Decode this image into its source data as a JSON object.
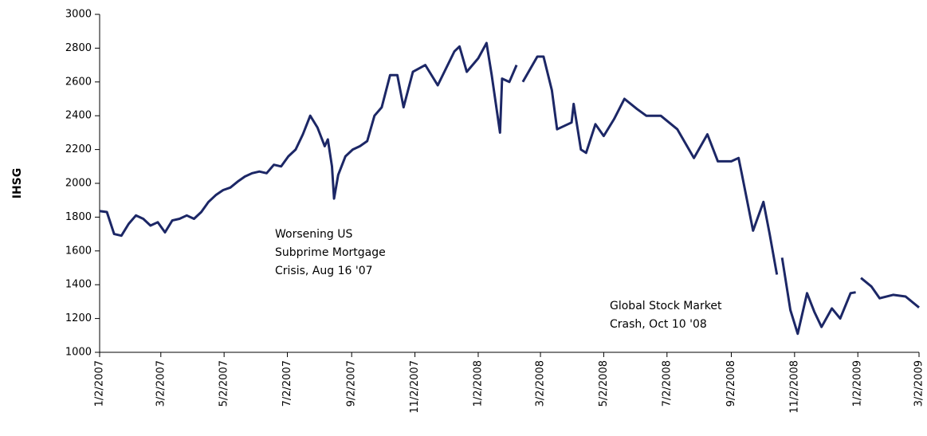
{
  "chart_data": {
    "type": "line",
    "y_label": "IHSG",
    "x": [
      "1/2/2007",
      "1/9/2007",
      "1/16/2007",
      "1/23/2007",
      "1/30/2007",
      "2/6/2007",
      "2/13/2007",
      "2/20/2007",
      "2/27/2007",
      "3/6/2007",
      "3/13/2007",
      "3/20/2007",
      "3/27/2007",
      "4/3/2007",
      "4/10/2007",
      "4/17/2007",
      "4/24/2007",
      "5/1/2007",
      "5/8/2007",
      "5/15/2007",
      "5/22/2007",
      "5/29/2007",
      "6/5/2007",
      "6/12/2007",
      "6/19/2007",
      "6/26/2007",
      "7/3/2007",
      "7/10/2007",
      "7/17/2007",
      "7/24/2007",
      "7/31/2007",
      "8/7/2007",
      "8/10/2007",
      "8/14/2007",
      "8/16/2007",
      "8/20/2007",
      "8/27/2007",
      "9/3/2007",
      "9/10/2007",
      "9/17/2007",
      "9/24/2007",
      "10/1/2007",
      "10/9/2007",
      "10/16/2007",
      "10/22/2007",
      "10/31/2007",
      "11/12/2007",
      "11/24/2007",
      "12/10/2007",
      "12/15/2007",
      "12/22/2007",
      "1/2/2008",
      "1/10/2008",
      "1/15/2008",
      "1/23/2008",
      "1/25/2008",
      "2/1/2008",
      "2/8/2008",
      "2/11/2008",
      "2/14/2008",
      "2/28/2008",
      "3/5/2008",
      "3/13/2008",
      "3/18/2008",
      "4/1/2008",
      "4/3/2008",
      "4/10/2008",
      "4/15/2008",
      "4/24/2008",
      "5/2/2008",
      "5/12/2008",
      "5/22/2008",
      "6/3/2008",
      "6/12/2008",
      "6/26/2008",
      "7/12/2008",
      "7/28/2008",
      "8/10/2008",
      "8/20/2008",
      "9/2/2008",
      "9/9/2008",
      "9/12/2008",
      "9/23/2008",
      "10/3/2008",
      "10/9/2008",
      "10/16/2008",
      "10/18/2008",
      "10/21/2008",
      "10/29/2008",
      "11/5/2008",
      "11/14/2008",
      "11/21/2008",
      "11/28/2008",
      "12/8/2008",
      "12/16/2008",
      "12/26/2008",
      "12/31/2008",
      "1/3/2009",
      "1/5/2009",
      "1/15/2009",
      "1/23/2009",
      "2/5/2009",
      "2/17/2009",
      "3/2/2009"
    ],
    "series": [
      {
        "color": "#1c2766",
        "values": [
          1836,
          1830,
          1700,
          1690,
          1760,
          1810,
          1790,
          1750,
          1770,
          1710,
          1780,
          1790,
          1810,
          1790,
          1830,
          1890,
          1930,
          1960,
          1975,
          2010,
          2040,
          2060,
          2070,
          2060,
          2110,
          2100,
          2160,
          2200,
          2290,
          2400,
          2330,
          2220,
          2260,
          2100,
          1910,
          2050,
          2160,
          2200,
          2220,
          2250,
          2400,
          2450,
          2640,
          2640,
          2450,
          2660,
          2700,
          2580,
          2780,
          2810,
          2660,
          2740,
          2830,
          2640,
          2300,
          2620,
          2600,
          2700,
          null,
          2600,
          2750,
          2750,
          2550,
          2320,
          2360,
          2470,
          2200,
          2180,
          2350,
          2280,
          2380,
          2500,
          2440,
          2400,
          2400,
          2320,
          2150,
          2290,
          2130,
          2130,
          2150,
          2060,
          1720,
          1890,
          1700,
          1460,
          null,
          1560,
          1250,
          1110,
          1350,
          1240,
          1150,
          1260,
          1200,
          1350,
          1355,
          null,
          1440,
          1390,
          1320,
          1340,
          1330,
          1265
        ]
      }
    ],
    "xlim": [
      "1/2/2007",
      "3/2/2009"
    ],
    "xticks": [
      "1/2/2007",
      "3/2/2007",
      "5/2/2007",
      "7/2/2007",
      "9/2/2007",
      "11/2/2007",
      "1/2/2008",
      "3/2/2008",
      "5/2/2008",
      "7/2/2008",
      "9/2/2008",
      "11/2/2008",
      "1/2/2009",
      "3/2/2009"
    ],
    "ylim": [
      1000,
      3000
    ],
    "yticks": [
      1000,
      1200,
      1400,
      1600,
      1800,
      2000,
      2200,
      2400,
      2600,
      2800,
      3000
    ],
    "annotations": [
      {
        "lines": [
          "Worsening US",
          "Subprime Mortgage",
          "Crisis, Aug 16 '07"
        ]
      },
      {
        "lines": [
          "Global Stock Market",
          "Crash, Oct 10 '08"
        ]
      }
    ]
  }
}
